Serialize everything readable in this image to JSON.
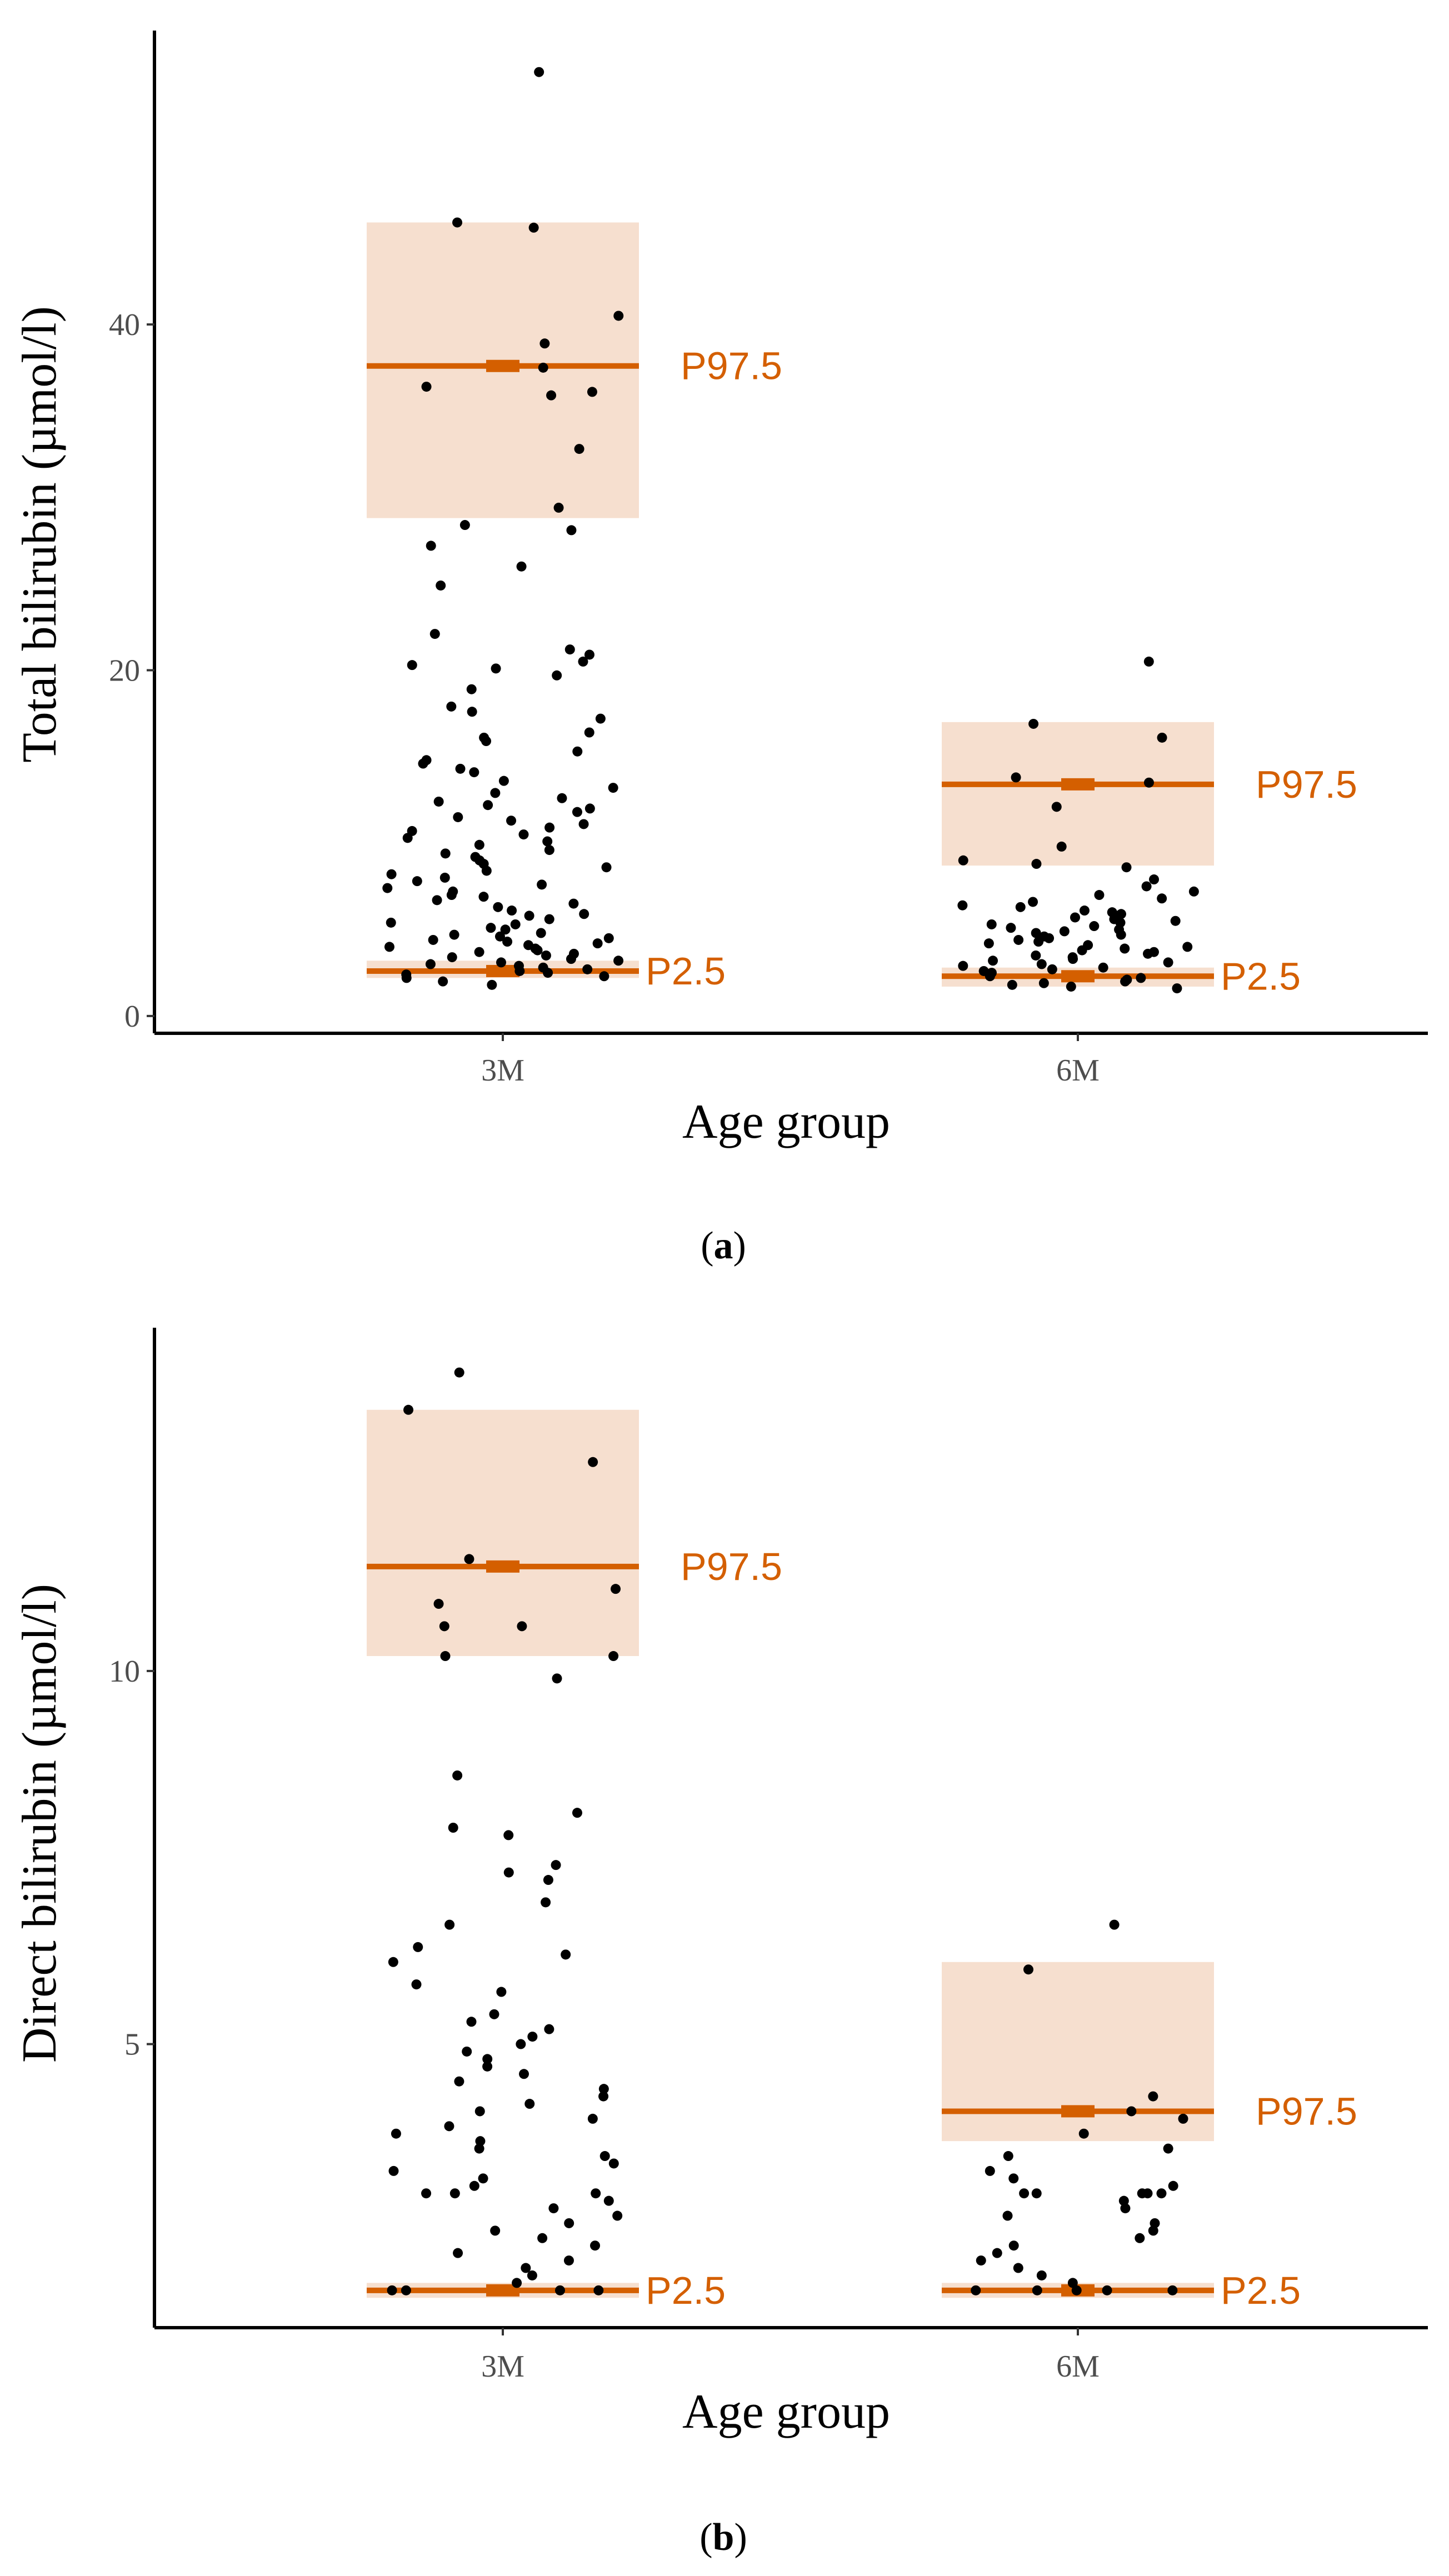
{
  "colors": {
    "reference_line": "#d45f00",
    "confidence_band": "#f6dfcf",
    "points": "#000000",
    "axis": "#000000",
    "tick_text": "#4d4d4d"
  },
  "chart_data": [
    {
      "type": "scatter",
      "subtype": "jittered strip plot with reference interval bands",
      "panel_caption": {
        "open": "(",
        "letter": "a",
        "close": ")"
      },
      "xlabel": "Age group",
      "ylabel": "Total bilirubin (µmol/l)",
      "categories": [
        "3M",
        "6M"
      ],
      "ylim": [
        -1,
        57
      ],
      "yticks": [
        0,
        20,
        40
      ],
      "reference_intervals": [
        {
          "group": "3M",
          "label": "P97.5",
          "value": 37.6,
          "ci": [
            28.8,
            45.9
          ]
        },
        {
          "group": "3M",
          "label": "P2.5",
          "value": 2.6,
          "ci": [
            2.2,
            3.2
          ]
        },
        {
          "group": "6M",
          "label": "P97.5",
          "value": 13.4,
          "ci": [
            8.7,
            17.0
          ]
        },
        {
          "group": "6M",
          "label": "P2.5",
          "value": 2.3,
          "ci": [
            1.7,
            2.8
          ]
        }
      ],
      "series": [
        {
          "name": "3M",
          "values": [
            54.6,
            45.9,
            45.6,
            40.5,
            38.9,
            37.5,
            36.4,
            36.1,
            35.9,
            32.8,
            29.4,
            28.4,
            28.1,
            27.2,
            26.0,
            24.9,
            22.1,
            21.2,
            20.9,
            20.5,
            20.3,
            20.1,
            19.7,
            18.9,
            17.9,
            17.6,
            17.2,
            16.4,
            16.1,
            15.9,
            15.3,
            14.8,
            14.6,
            14.3,
            14.1,
            13.6,
            13.2,
            12.9,
            12.6,
            12.4,
            12.2,
            12.0,
            11.8,
            11.5,
            11.3,
            11.1,
            10.9,
            10.7,
            10.5,
            10.3,
            10.1,
            9.9,
            9.6,
            9.4,
            9.2,
            9.0,
            8.8,
            8.6,
            8.4,
            8.2,
            8.0,
            7.8,
            7.6,
            7.4,
            7.2,
            7.0,
            6.9,
            6.7,
            6.5,
            6.3,
            6.1,
            5.9,
            5.8,
            5.6,
            5.4,
            5.3,
            5.1,
            5.0,
            4.8,
            4.7,
            4.6,
            4.5,
            4.4,
            4.3,
            4.2,
            4.1,
            4.0,
            3.9,
            3.8,
            3.7,
            3.6,
            3.5,
            3.4,
            3.3,
            3.2,
            3.1,
            3.0,
            2.9,
            2.8,
            2.7,
            2.6,
            2.5,
            2.4,
            2.3,
            2.2,
            2.0,
            1.8
          ]
        },
        {
          "name": "6M",
          "values": [
            20.5,
            16.9,
            16.1,
            13.8,
            13.5,
            12.1,
            9.8,
            9.0,
            8.8,
            8.6,
            7.9,
            7.5,
            7.2,
            7.0,
            6.8,
            6.6,
            6.4,
            6.3,
            6.1,
            6.0,
            5.9,
            5.8,
            5.7,
            5.6,
            5.5,
            5.4,
            5.3,
            5.2,
            5.1,
            5.0,
            4.9,
            4.8,
            4.7,
            4.6,
            4.5,
            4.4,
            4.3,
            4.2,
            4.1,
            4.0,
            3.9,
            3.8,
            3.7,
            3.6,
            3.5,
            3.4,
            3.3,
            3.2,
            3.1,
            3.0,
            2.9,
            2.8,
            2.7,
            2.6,
            2.5,
            2.4,
            2.3,
            2.2,
            2.1,
            2.0,
            1.9,
            1.8,
            1.7,
            1.6
          ]
        }
      ]
    },
    {
      "type": "scatter",
      "subtype": "jittered strip plot with reference interval bands",
      "panel_caption": {
        "open": "(",
        "letter": "b",
        "close": ")"
      },
      "xlabel": "Age group",
      "ylabel": "Direct bilirubin (µmol/l)",
      "categories": [
        "3M",
        "6M"
      ],
      "ylim": [
        1.2,
        14.6
      ],
      "yticks": [
        5,
        10
      ],
      "reference_intervals": [
        {
          "group": "3M",
          "label": "P97.5",
          "value": 11.4,
          "ci": [
            10.2,
            13.5
          ]
        },
        {
          "group": "3M",
          "label": "P2.5",
          "value": 1.7,
          "ci": [
            1.6,
            1.8
          ]
        },
        {
          "group": "6M",
          "label": "P97.5",
          "value": 4.1,
          "ci": [
            3.7,
            6.1
          ]
        },
        {
          "group": "6M",
          "label": "P2.5",
          "value": 1.7,
          "ci": [
            1.6,
            1.8
          ]
        }
      ],
      "series": [
        {
          "name": "3M",
          "values": [
            14.0,
            13.5,
            12.8,
            11.5,
            11.1,
            10.9,
            10.6,
            10.6,
            10.2,
            10.2,
            9.9,
            8.6,
            8.1,
            7.9,
            7.8,
            7.4,
            7.3,
            7.2,
            6.9,
            6.6,
            6.3,
            6.2,
            6.1,
            5.8,
            5.7,
            5.4,
            5.3,
            5.2,
            5.1,
            5.0,
            4.9,
            4.8,
            4.7,
            4.6,
            4.5,
            4.4,
            4.3,
            4.2,
            4.1,
            4.0,
            3.9,
            3.8,
            3.7,
            3.6,
            3.5,
            3.4,
            3.3,
            3.2,
            3.1,
            3.0,
            3.0,
            3.0,
            2.9,
            2.8,
            2.7,
            2.6,
            2.5,
            2.4,
            2.3,
            2.2,
            2.1,
            2.0,
            1.9,
            1.8,
            1.7,
            1.7,
            1.7,
            1.7
          ]
        },
        {
          "name": "6M",
          "values": [
            6.6,
            6.0,
            4.3,
            4.1,
            4.0,
            3.8,
            3.6,
            3.5,
            3.3,
            3.2,
            3.1,
            3.0,
            3.0,
            3.0,
            3.0,
            3.0,
            2.9,
            2.8,
            2.7,
            2.6,
            2.5,
            2.4,
            2.3,
            2.2,
            2.1,
            2.0,
            1.9,
            1.8,
            1.7,
            1.7,
            1.7,
            1.7,
            1.7
          ]
        }
      ]
    }
  ]
}
